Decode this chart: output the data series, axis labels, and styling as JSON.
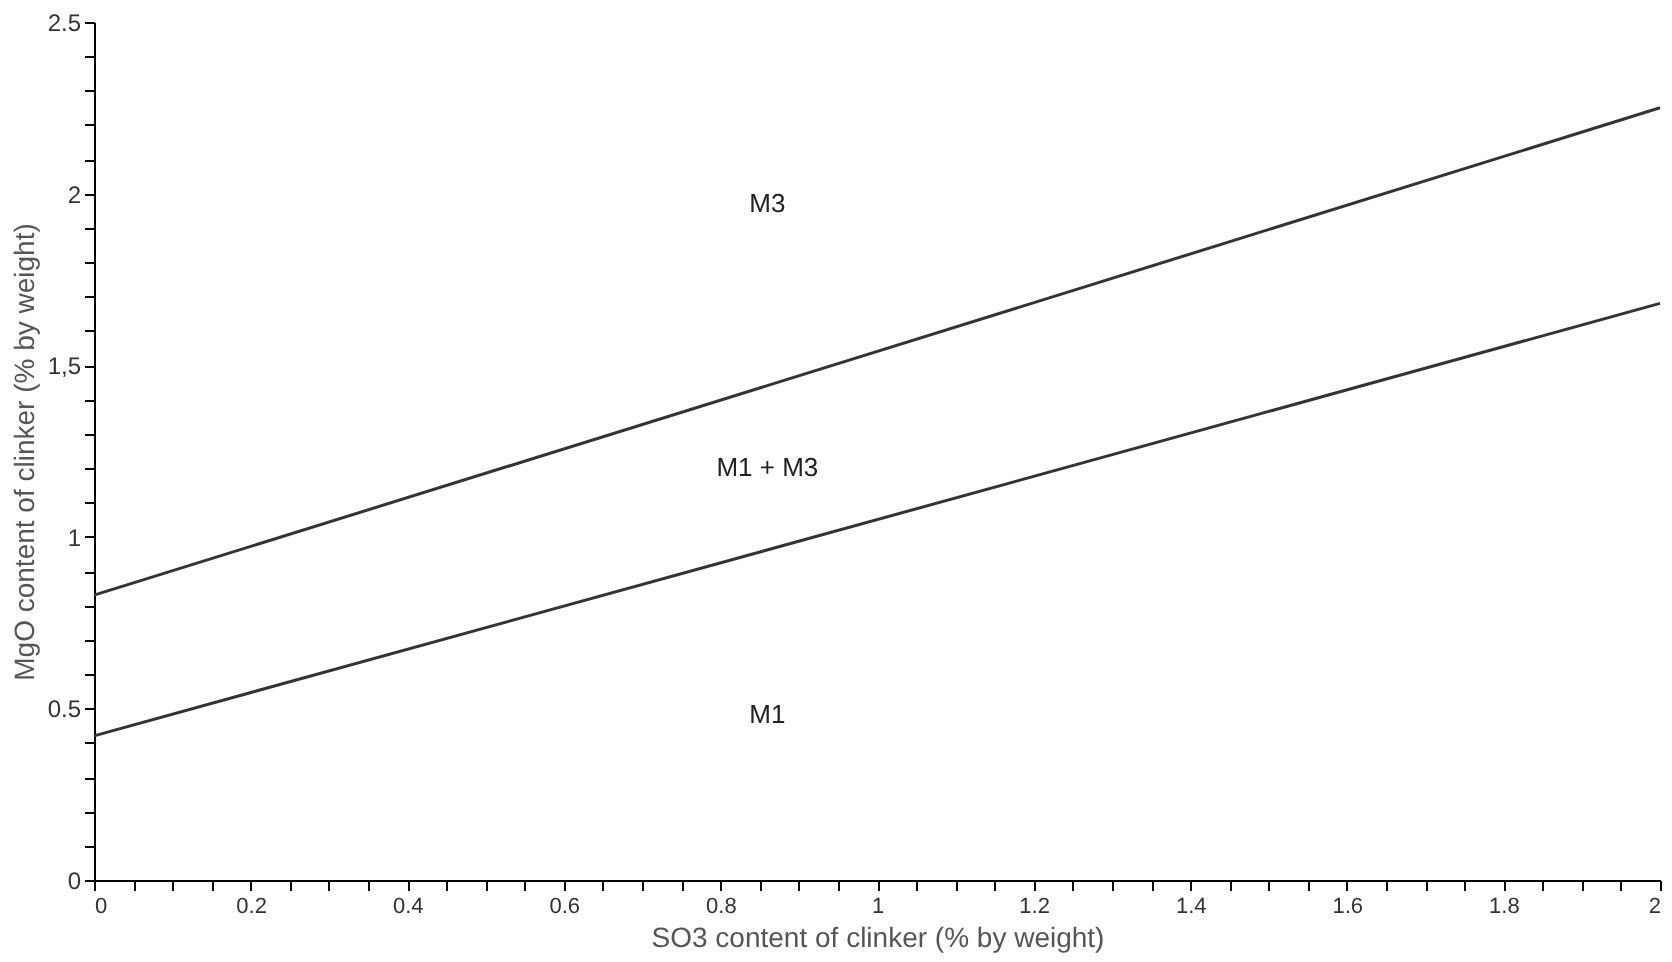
{
  "chart_data": {
    "type": "line",
    "xlabel": "SO3 content of clinker (% by weight)",
    "ylabel": "MgO content of clinker (% by weight)",
    "x": [
      0,
      2
    ],
    "series": [
      {
        "color": "#333333",
        "values": [
          0.83,
          2.25
        ]
      },
      {
        "color": "#333333",
        "values": [
          0.42,
          1.68
        ]
      }
    ],
    "xlim": [
      0,
      2
    ],
    "ylim": [
      0,
      2.5
    ],
    "xticks": [
      0,
      {
        "value": 0.05,
        "label": null
      },
      {
        "value": 0.1,
        "label": null
      },
      {
        "value": 0.15,
        "label": null
      },
      0.2,
      {
        "value": 0.25,
        "label": null
      },
      {
        "value": 0.3,
        "label": null
      },
      {
        "value": 0.35,
        "label": null
      },
      0.4,
      {
        "value": 0.45,
        "label": null
      },
      {
        "value": 0.5,
        "label": null
      },
      {
        "value": 0.55,
        "label": null
      },
      0.6,
      {
        "value": 0.65,
        "label": null
      },
      {
        "value": 0.7,
        "label": null
      },
      {
        "value": 0.75,
        "label": null
      },
      0.8,
      {
        "value": 0.85,
        "label": null
      },
      {
        "value": 0.9,
        "label": null
      },
      {
        "value": 0.95,
        "label": null
      },
      1,
      {
        "value": 1.05,
        "label": null
      },
      {
        "value": 1.1,
        "label": null
      },
      {
        "value": 1.15,
        "label": null
      },
      1.2,
      {
        "value": 1.25,
        "label": null
      },
      {
        "value": 1.3,
        "label": null
      },
      {
        "value": 1.35,
        "label": null
      },
      1.4,
      {
        "value": 1.45,
        "label": null
      },
      {
        "value": 1.5,
        "label": null
      },
      {
        "value": 1.55,
        "label": null
      },
      1.6,
      {
        "value": 1.65,
        "label": null
      },
      {
        "value": 1.7,
        "label": null
      },
      {
        "value": 1.75,
        "label": null
      },
      1.8,
      {
        "value": 1.85,
        "label": null
      },
      {
        "value": 1.9,
        "label": null
      },
      {
        "value": 1.95,
        "label": null
      },
      2
    ],
    "yticks": [
      0,
      {
        "value": 0.1,
        "label": null
      },
      {
        "value": 0.2,
        "label": null
      },
      {
        "value": 0.3,
        "label": null
      },
      {
        "value": 0.4,
        "label": null
      },
      0.5,
      {
        "value": 0.6,
        "label": null
      },
      {
        "value": 0.7,
        "label": null
      },
      {
        "value": 0.8,
        "label": null
      },
      {
        "value": 0.9,
        "label": null
      },
      1,
      {
        "value": 1.1,
        "label": null
      },
      {
        "value": 1.2,
        "label": null
      },
      {
        "value": 1.3,
        "label": null
      },
      {
        "value": 1.4,
        "label": null
      },
      {
        "value": 1.5,
        "label": "1,5"
      },
      {
        "value": 1.6,
        "label": null
      },
      {
        "value": 1.7,
        "label": null
      },
      {
        "value": 1.8,
        "label": null
      },
      {
        "value": 1.9,
        "label": null
      },
      2,
      {
        "value": 2.1,
        "label": null
      },
      {
        "value": 2.2,
        "label": null
      },
      {
        "value": 2.3,
        "label": null
      },
      {
        "value": 2.4,
        "label": null
      },
      2.5
    ],
    "annotations": [
      "M3",
      "M1 + M3",
      "M1"
    ],
    "grid": false,
    "marker": "none",
    "line_style": "solid"
  }
}
